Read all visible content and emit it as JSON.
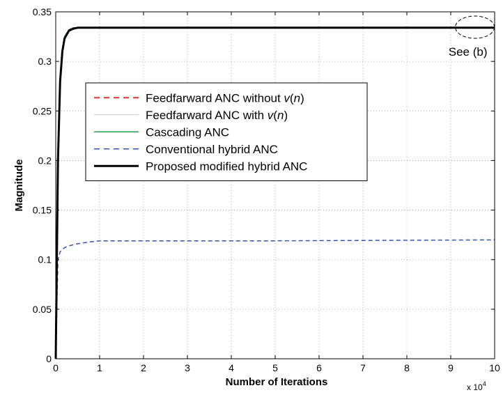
{
  "chart_data": {
    "type": "line",
    "xlabel": "Number of Iterations",
    "ylabel": "Magnitude",
    "x_multiplier_label": {
      "base": "x 10",
      "exponent": "4"
    },
    "xlim": [
      0,
      10
    ],
    "ylim": [
      0,
      0.35
    ],
    "xticks": [
      "0",
      "1",
      "2",
      "3",
      "4",
      "5",
      "6",
      "7",
      "8",
      "9",
      "10"
    ],
    "yticks": [
      "0",
      "0.05",
      "0.1",
      "0.15",
      "0.2",
      "0.25",
      "0.3",
      "0.35"
    ],
    "grid": true,
    "legend_position": "center-left",
    "annotation": {
      "text": "See (b)",
      "x": 9.55,
      "y": 0.3345
    },
    "series": [
      {
        "name": "Feedfarward ANC  without v(n)",
        "color": "#e8312b",
        "style": "dashed",
        "width": 2,
        "x": [
          0,
          0.05,
          0.1,
          0.15,
          0.2,
          0.3,
          0.4,
          0.5,
          0.7,
          1,
          2,
          5,
          10
        ],
        "values": [
          0,
          0.2,
          0.28,
          0.31,
          0.323,
          0.331,
          0.333,
          0.334,
          0.334,
          0.334,
          0.334,
          0.334,
          0.334
        ]
      },
      {
        "name": "Feedfarward ANC with v(n)",
        "color": "#c8c8c8",
        "style": "solid",
        "width": 1,
        "x": [
          0,
          0.05,
          0.1,
          0.15,
          0.2,
          0.3,
          0.4,
          0.5,
          0.7,
          1,
          2,
          5,
          10
        ],
        "values": [
          0,
          0.2,
          0.28,
          0.31,
          0.323,
          0.331,
          0.333,
          0.334,
          0.334,
          0.334,
          0.334,
          0.334,
          0.334
        ]
      },
      {
        "name": "Cascading ANC",
        "color": "#21a048",
        "style": "solid",
        "width": 1.5,
        "x": [
          0,
          0.05,
          0.1,
          0.15,
          0.2,
          0.3,
          0.4,
          0.5,
          0.7,
          1,
          2,
          5,
          10
        ],
        "values": [
          0,
          0.21,
          0.285,
          0.313,
          0.325,
          0.332,
          0.334,
          0.334,
          0.334,
          0.334,
          0.334,
          0.334,
          0.334
        ]
      },
      {
        "name": "Conventional hybrid ANC",
        "color": "#2f55b5",
        "style": "dashed",
        "width": 1.5,
        "x": [
          0,
          0.05,
          0.1,
          0.2,
          0.3,
          0.5,
          0.8,
          1,
          2,
          5,
          10
        ],
        "values": [
          0,
          0.1,
          0.108,
          0.112,
          0.114,
          0.116,
          0.118,
          0.119,
          0.119,
          0.119,
          0.12
        ]
      },
      {
        "name": "Proposed modified hybrid ANC",
        "color": "#000000",
        "style": "solid",
        "width": 3,
        "x": [
          0,
          0.05,
          0.1,
          0.15,
          0.2,
          0.3,
          0.4,
          0.5,
          0.7,
          1,
          2,
          5,
          10
        ],
        "values": [
          0,
          0.2,
          0.28,
          0.31,
          0.323,
          0.331,
          0.333,
          0.334,
          0.334,
          0.334,
          0.334,
          0.334,
          0.334
        ]
      }
    ]
  }
}
